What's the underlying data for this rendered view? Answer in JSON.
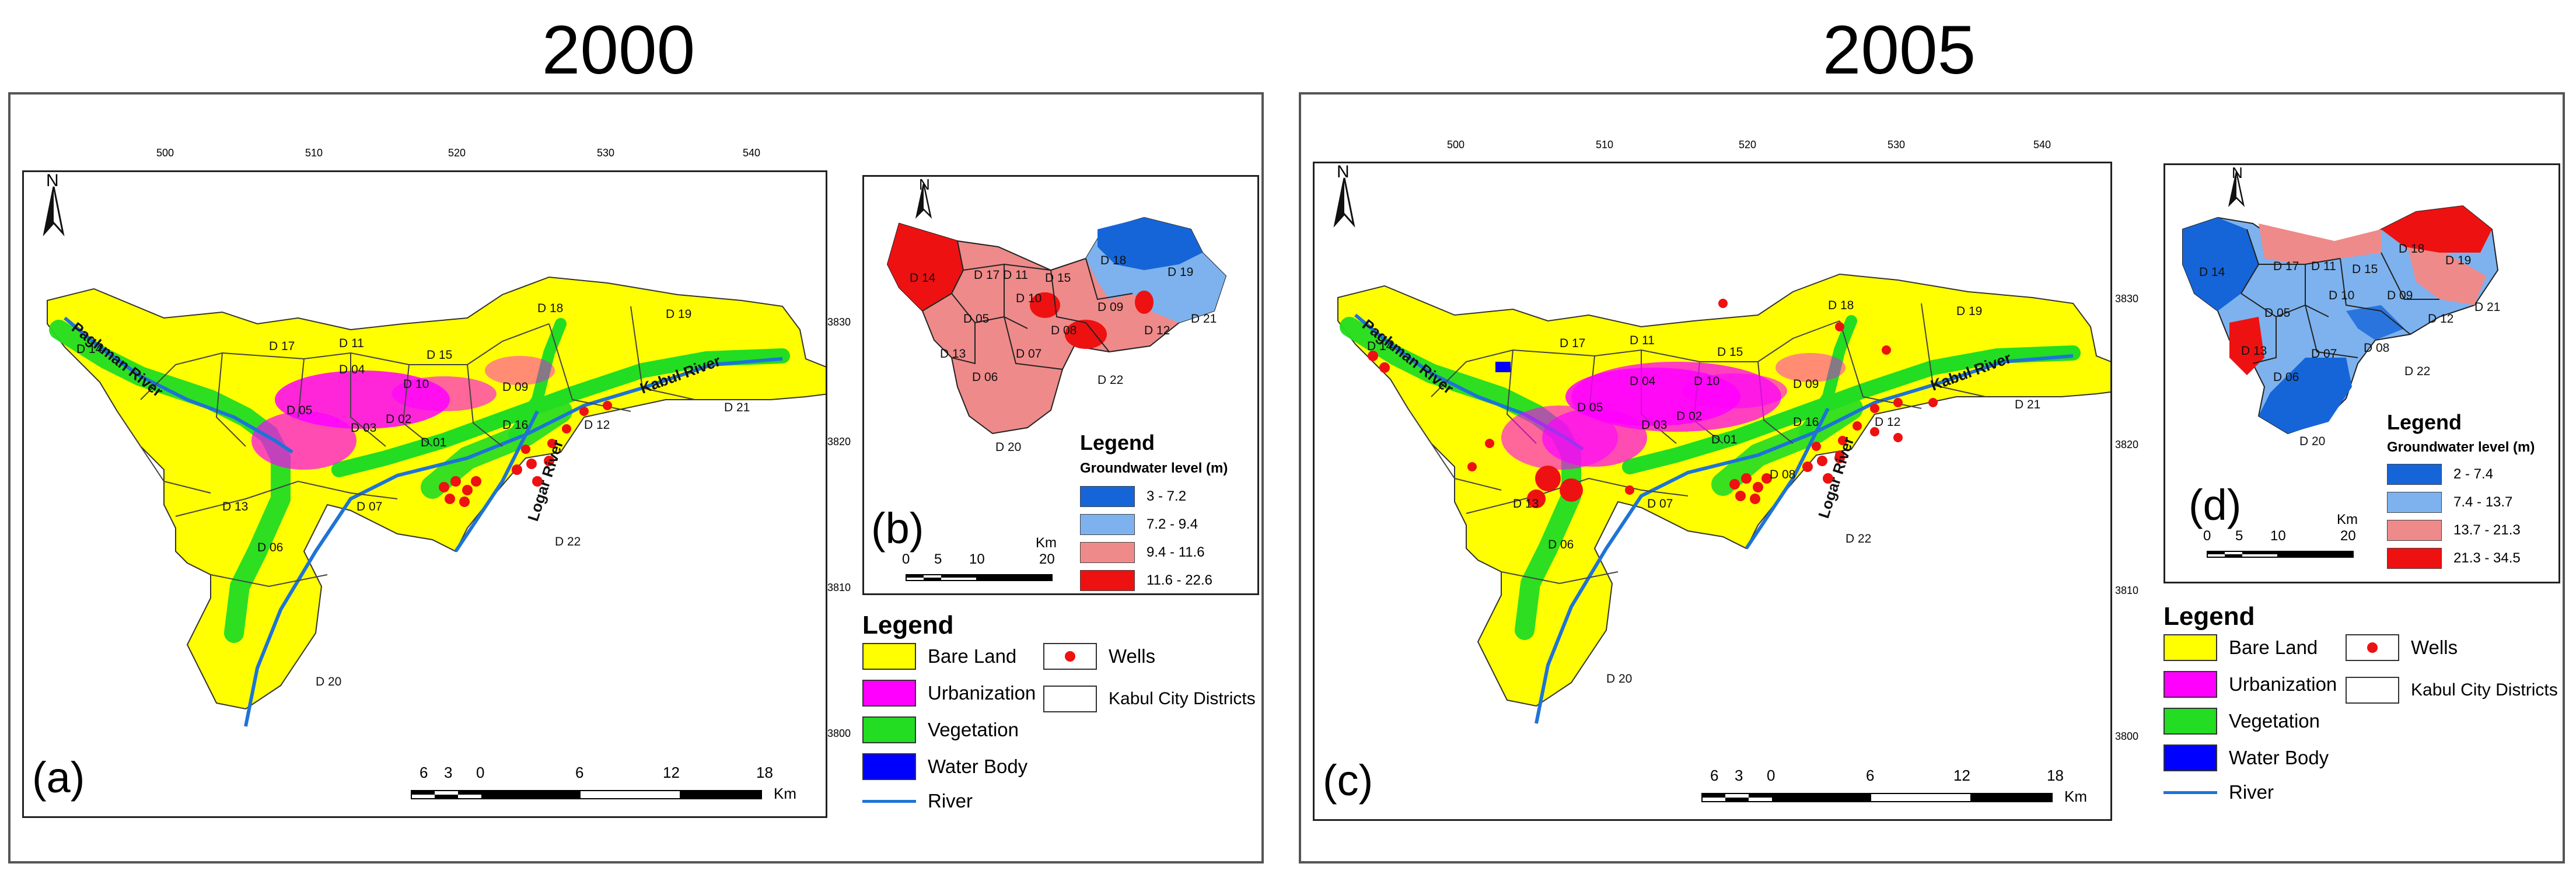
{
  "titles": [
    "2000",
    "2005"
  ],
  "panel_letters": {
    "a": "(a)",
    "b": "(b)",
    "c": "(c)",
    "d": "(d)"
  },
  "north_label": "N",
  "top_ticks": [
    "500",
    "510",
    "520",
    "530",
    "540"
  ],
  "side_ticks": [
    "3830",
    "3820",
    "3810",
    "3800"
  ],
  "rivers": {
    "paghman": "Paghman River",
    "kabul": "Kabul River",
    "logar": "Logar River"
  },
  "districts": {
    "d01": "D 01",
    "d02": "D 02",
    "d03": "D 03",
    "d04": "D 04",
    "d05": "D 05",
    "d06": "D 06",
    "d07": "D 07",
    "d08": "D 08",
    "d09": "D 09",
    "d10": "D 10",
    "d11": "D 11",
    "d12": "D 12",
    "d13": "D 13",
    "d14": "D 14",
    "d15": "D 15",
    "d16": "D 16",
    "d17": "D 17",
    "d18": "D 18",
    "d19": "D 19",
    "d20": "D 20",
    "d21": "D 21",
    "d22": "D 22"
  },
  "landcover_legend": {
    "title": "Legend",
    "items": [
      {
        "label": "Bare Land",
        "color": "#ffff00"
      },
      {
        "label": "Urbanization",
        "color": "#ff00ff"
      },
      {
        "label": "Vegetation",
        "color": "#22dd22"
      },
      {
        "label": "Water Body",
        "color": "#0000ff"
      }
    ],
    "river_label": "River",
    "river_color": "#1e73d6",
    "wells_label": "Wells",
    "wells_color": "#ee1111",
    "districts_label": "Kabul City Districts"
  },
  "landcover_scale": {
    "labels": [
      "6",
      "3",
      "0",
      "6",
      "12",
      "18"
    ],
    "unit": "Km"
  },
  "gw_scale": {
    "labels": [
      "0",
      "5",
      "10",
      "20"
    ],
    "unit": "Km"
  },
  "gw_2000": {
    "title": "Legend",
    "subtitle": "Groundwater level (m)",
    "classes": [
      {
        "label": "3 - 7.2",
        "color": "#1565d8"
      },
      {
        "label": "7.2 - 9.4",
        "color": "#7db2ee"
      },
      {
        "label": "9.4 - 11.6",
        "color": "#ef8a8a"
      },
      {
        "label": "11.6 - 22.6",
        "color": "#ee1111"
      }
    ]
  },
  "gw_2005": {
    "title": "Legend",
    "subtitle": "Groundwater level (m)",
    "classes": [
      {
        "label": "2 - 7.4",
        "color": "#1565d8"
      },
      {
        "label": "7.4 - 13.7",
        "color": "#7db2ee"
      },
      {
        "label": "13.7 - 21.3",
        "color": "#ef8a8a"
      },
      {
        "label": "21.3 - 34.5",
        "color": "#ee1111"
      }
    ]
  }
}
